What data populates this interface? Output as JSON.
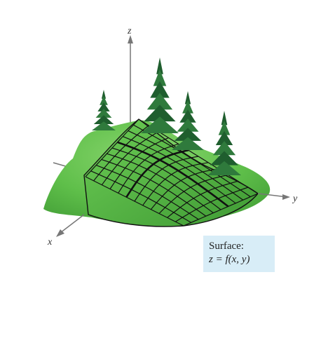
{
  "axes": {
    "z": "z",
    "y": "y",
    "x": "x"
  },
  "caption": {
    "title": "Surface:",
    "equation": "z = f(x, y)"
  },
  "colors": {
    "ground": "#5fbf4a",
    "ground_dark": "#3f9a34",
    "grid_line": "#111111",
    "tree_dark": "#1f5e2e",
    "tree_mid": "#2f7a3c",
    "trunk": "#6b3a22",
    "caption_bg": "#d8edf7",
    "axis": "#777777"
  }
}
